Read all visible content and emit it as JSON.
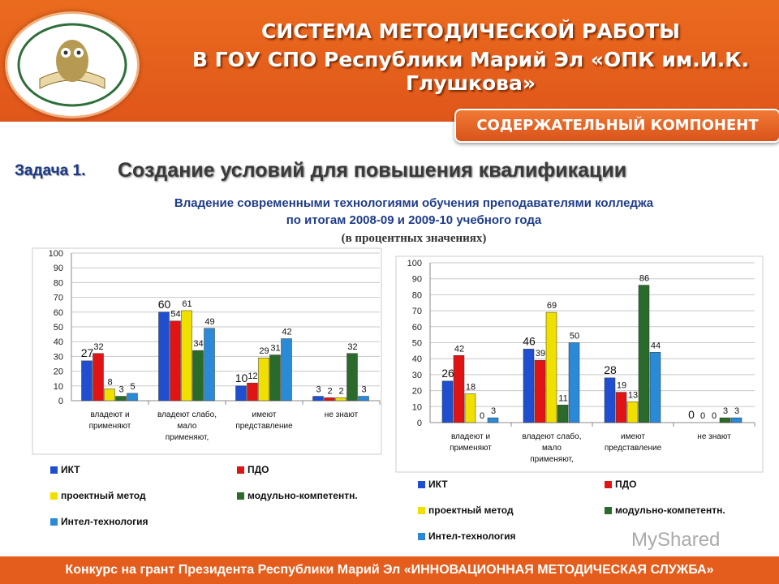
{
  "header": {
    "title_line1": "СИСТЕМА МЕТОДИЧЕСКОЙ РАБОТЫ",
    "title_line2": "В ГОУ СПО Республики Марий Эл «ОПК им.И.К. Глушкова»",
    "badge": "СОДЕРЖАТЕЛЬНЫЙ КОМПОНЕНТ"
  },
  "task": {
    "label": "Задача 1.",
    "title": "Создание условий для повышения квалификации"
  },
  "subtitle": {
    "line1": "Владение современными технологиями обучения преподавателями колледжа",
    "line2": "по итогам 2008-09 и 2009-10 учебного года",
    "line3": "(в процентных значениях)"
  },
  "colors": {
    "ИКТ": "#1f4fd0",
    "ПДО": "#e01414",
    "проектный метод": "#f0e000",
    "модульно-компетентн.": "#2a6a2a",
    "Интел-технология": "#2a8ad8"
  },
  "chart_data": [
    {
      "type": "bar",
      "ylim": [
        0,
        100
      ],
      "yticks": [
        "0",
        "10",
        "20",
        "30",
        "40",
        "50",
        "60",
        "70",
        "80",
        "90",
        "100"
      ],
      "categories": [
        [
          "владеют и",
          "применяют"
        ],
        [
          "владеют  слабо,",
          "мало",
          "применяют,"
        ],
        [
          "имеют",
          "представление"
        ],
        [
          "не знают"
        ]
      ],
      "series": [
        {
          "name": "ИКТ",
          "values": [
            27,
            60,
            10,
            3
          ]
        },
        {
          "name": "ПДО",
          "values": [
            32,
            54,
            12,
            2
          ]
        },
        {
          "name": "проектный метод",
          "values": [
            8,
            61,
            29,
            2
          ]
        },
        {
          "name": "модульно-компетентн.",
          "values": [
            3,
            34,
            31,
            32
          ]
        },
        {
          "name": "Интел-технология",
          "values": [
            5,
            49,
            42,
            3
          ]
        }
      ],
      "grid": true,
      "legend": "bottom"
    },
    {
      "type": "bar",
      "ylim": [
        0,
        100
      ],
      "yticks": [
        "0",
        "10",
        "20",
        "30",
        "40",
        "50",
        "60",
        "70",
        "80",
        "90",
        "100"
      ],
      "categories": [
        [
          "владеют и",
          "применяют"
        ],
        [
          "владеют  слабо,",
          "мало",
          "применяют,"
        ],
        [
          "имеют",
          "представление"
        ],
        [
          "не знают"
        ]
      ],
      "series": [
        {
          "name": "ИКТ",
          "values": [
            26,
            46,
            28,
            0
          ]
        },
        {
          "name": "ПДО",
          "values": [
            42,
            39,
            19,
            0
          ]
        },
        {
          "name": "проектный метод",
          "values": [
            18,
            69,
            13,
            0
          ]
        },
        {
          "name": "модульно-компетентн.",
          "values": [
            0,
            11,
            86,
            3
          ]
        },
        {
          "name": "Интел-технология",
          "values": [
            3,
            50,
            44,
            3
          ]
        }
      ],
      "grid": true,
      "legend": "bottom"
    }
  ],
  "footer": "Конкурс на грант Президента Республики Марий Эл «ИННОВАЦИОННАЯ МЕТОДИЧЕСКАЯ СЛУЖБА»",
  "watermark": "MyShared"
}
